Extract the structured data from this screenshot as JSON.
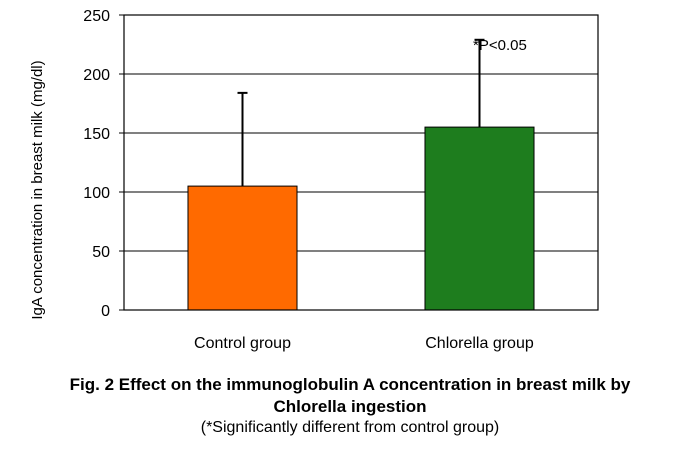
{
  "chart_data": {
    "type": "bar",
    "categories": [
      "Control group",
      "Chlorella group"
    ],
    "values": [
      105,
      155
    ],
    "error_upper": [
      184,
      229
    ],
    "colors": [
      "#ff6a00",
      "#1e7d1e"
    ],
    "ylabel": "IgA concentration in breast milk (mg/dl)",
    "xlabel": "",
    "ylim": [
      0,
      250
    ],
    "yticks": [
      0,
      50,
      100,
      150,
      200,
      250
    ],
    "grid": true,
    "annotation": "*P<0.05"
  },
  "caption": {
    "title_line1": "Fig. 2 Effect on the immunoglobulin A concentration in breast milk by",
    "title_line2": "Chlorella ingestion",
    "note": "(*Significantly different from control group)"
  }
}
